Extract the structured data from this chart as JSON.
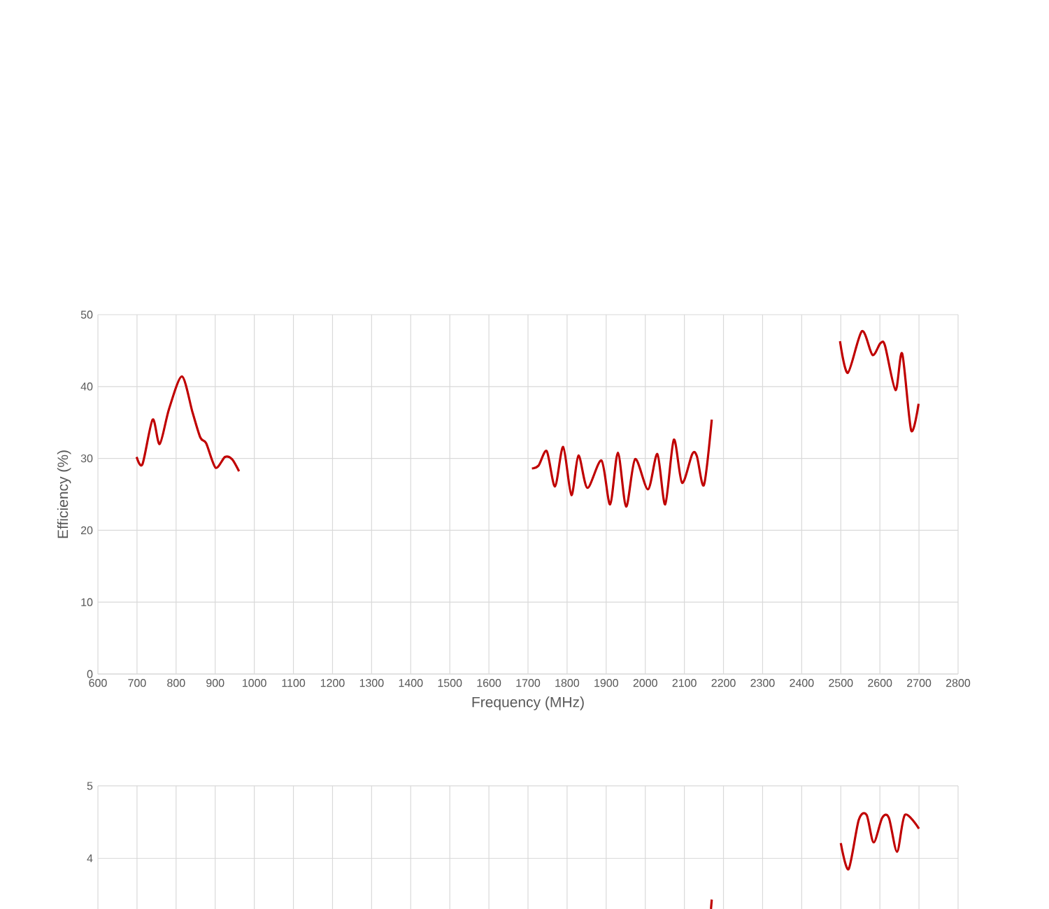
{
  "chart_data": [
    {
      "type": "line",
      "xlabel": "Frequency (MHz)",
      "ylabel": "Efficiency (%)",
      "x": [
        699,
        714,
        740,
        758,
        782,
        815,
        842,
        862,
        877,
        901,
        925,
        943,
        961,
        1300,
        1710,
        1727,
        1748,
        1769,
        1790,
        1811,
        1829,
        1852,
        1888,
        1910,
        1930,
        1951,
        1974,
        2007,
        2031,
        2051,
        2073,
        2094,
        2120,
        2132,
        2150,
        2170,
        2300,
        2498,
        2518,
        2554,
        2581,
        2601,
        2613,
        2640,
        2657,
        2680,
        2699
      ],
      "series": [
        {
          "color": "#c00000",
          "values": [
            30.2,
            29.2,
            35.4,
            32.0,
            36.9,
            41.4,
            36.4,
            32.9,
            32.1,
            28.7,
            30.2,
            29.9,
            28.2,
            null,
            28.6,
            29.0,
            31.0,
            26.1,
            31.6,
            24.9,
            30.4,
            25.9,
            29.7,
            23.6,
            30.8,
            23.3,
            29.9,
            25.7,
            30.6,
            23.6,
            32.6,
            26.6,
            30.6,
            30.3,
            26.3,
            35.4,
            null,
            46.3,
            41.9,
            47.7,
            44.4,
            46.0,
            45.7,
            39.5,
            44.6,
            33.9,
            37.6
          ]
        }
      ],
      "xlim": [
        600,
        2800
      ],
      "xticks": [
        600,
        700,
        800,
        900,
        1000,
        1100,
        1200,
        1300,
        1400,
        1500,
        1600,
        1700,
        1800,
        1900,
        2000,
        2100,
        2200,
        2300,
        2400,
        2500,
        2600,
        2700,
        2800
      ],
      "ylim": [
        0,
        50
      ],
      "yticks": [
        0,
        10,
        20,
        30,
        40,
        50
      ],
      "grid": true
    },
    {
      "type": "line",
      "tick_labels": "y",
      "x": [
        2168,
        2170,
        2300,
        2500,
        2520,
        2546,
        2566,
        2584,
        2606,
        2623,
        2644,
        2664,
        2700
      ],
      "series": [
        {
          "color": "#c00000",
          "values": [
            3.3,
            3.43,
            null,
            4.21,
            3.85,
            4.53,
            4.6,
            4.22,
            4.56,
            4.56,
            4.09,
            4.6,
            4.41
          ]
        }
      ],
      "xlim": [
        600,
        2800
      ],
      "xticks": [
        600,
        700,
        800,
        900,
        1000,
        1100,
        1200,
        1300,
        1400,
        1500,
        1600,
        1700,
        1800,
        1900,
        2000,
        2100,
        2200,
        2300,
        2400,
        2500,
        2600,
        2700,
        2800
      ],
      "ylim": [
        3.3,
        5
      ],
      "yticks": [
        4,
        5
      ],
      "grid": true
    }
  ]
}
